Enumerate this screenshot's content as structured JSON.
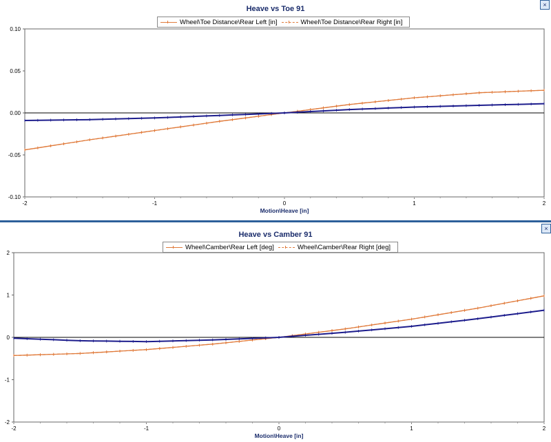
{
  "chart_data": [
    {
      "type": "line",
      "title": "Heave vs Toe 91",
      "xlabel": "Motion\\Heave [in]",
      "ylabel": "",
      "xlim": [
        -2,
        2
      ],
      "ylim": [
        -0.1,
        0.1
      ],
      "x_ticks": [
        "-2",
        "-1",
        "0",
        "1",
        "2"
      ],
      "y_ticks": [
        "-0.10",
        "-0.05",
        "0.00",
        "0.05",
        "0.10"
      ],
      "grid": false,
      "legend_position": "top-center",
      "x": [
        -2,
        -1.5,
        -1,
        -0.5,
        0,
        0.5,
        1,
        1.5,
        2
      ],
      "series": [
        {
          "name": "Wheel\\Toe Distance\\Rear Left [in]",
          "color": "#e07a3a",
          "style": "solid",
          "values": [
            -0.044,
            -0.032,
            -0.021,
            -0.01,
            0.0,
            0.01,
            0.018,
            0.024,
            0.027
          ]
        },
        {
          "name": "Wheel\\Toe Distance\\Rear Right [in]",
          "color": "#e07a3a",
          "style": "dashed",
          "values": [
            -0.044,
            -0.032,
            -0.021,
            -0.01,
            0.0,
            0.01,
            0.018,
            0.024,
            0.027
          ]
        },
        {
          "name": "",
          "color": "#1c1c8c",
          "style": "solid",
          "values": [
            -0.009,
            -0.008,
            -0.006,
            -0.003,
            0.0,
            0.004,
            0.007,
            0.009,
            0.011
          ]
        }
      ]
    },
    {
      "type": "line",
      "title": "Heave vs Camber 91",
      "xlabel": "Motion\\Heave [in]",
      "ylabel": "",
      "xlim": [
        -2,
        2
      ],
      "ylim": [
        -2,
        2
      ],
      "x_ticks": [
        "-2",
        "-1",
        "0",
        "1",
        "2"
      ],
      "y_ticks": [
        "-2",
        "-1",
        "0",
        "1",
        "2"
      ],
      "grid": false,
      "legend_position": "top-center",
      "x": [
        -2,
        -1.5,
        -1,
        -0.5,
        0,
        0.5,
        1,
        1.5,
        2
      ],
      "series": [
        {
          "name": "Wheel\\Camber\\Rear Left [deg]",
          "color": "#e07a3a",
          "style": "solid",
          "values": [
            -0.43,
            -0.38,
            -0.29,
            -0.16,
            0.0,
            0.2,
            0.43,
            0.69,
            0.98
          ]
        },
        {
          "name": "Wheel\\Camber\\Rear Right [deg]",
          "color": "#e07a3a",
          "style": "dashed",
          "values": [
            -0.43,
            -0.38,
            -0.29,
            -0.16,
            0.0,
            0.2,
            0.43,
            0.69,
            0.98
          ]
        },
        {
          "name": "",
          "color": "#1c1c8c",
          "style": "solid",
          "values": [
            -0.02,
            -0.08,
            -0.1,
            -0.06,
            0.0,
            0.12,
            0.26,
            0.44,
            0.64
          ]
        }
      ]
    }
  ],
  "windows": [
    {
      "close_glyph": "×"
    },
    {
      "close_glyph": "×"
    }
  ]
}
